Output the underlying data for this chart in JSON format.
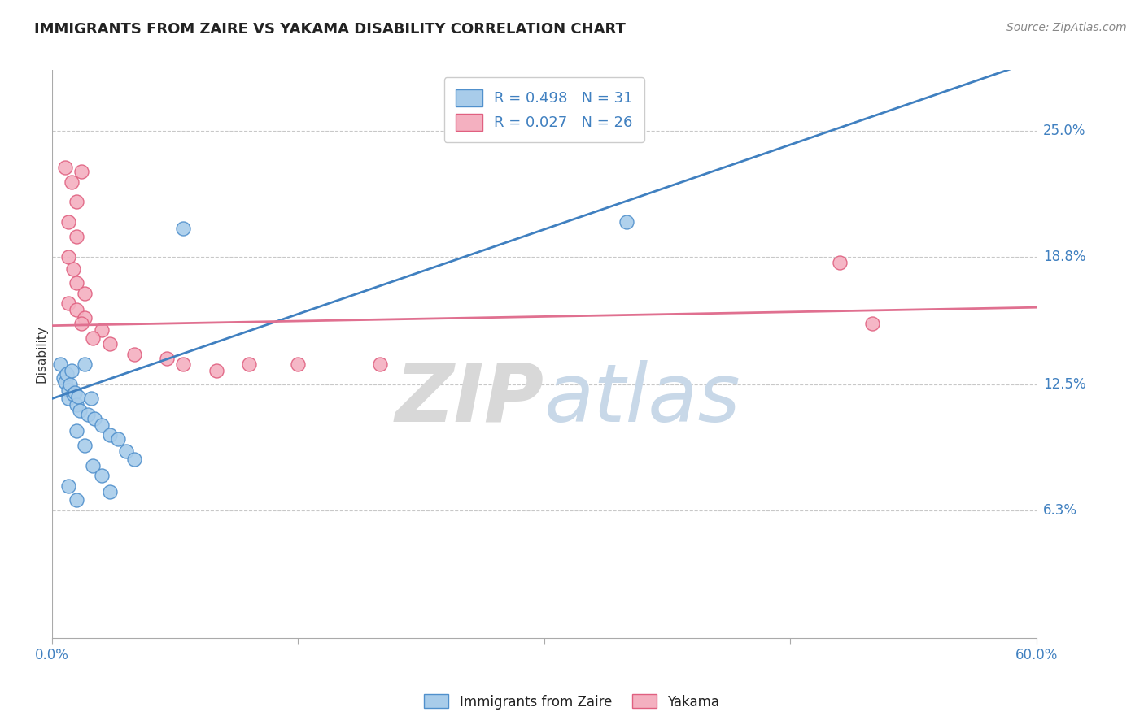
{
  "title": "IMMIGRANTS FROM ZAIRE VS YAKAMA DISABILITY CORRELATION CHART",
  "source": "Source: ZipAtlas.com",
  "ylabel": "Disability",
  "xlim": [
    0.0,
    60.0
  ],
  "ylim": [
    0.0,
    28.0
  ],
  "yticks": [
    6.3,
    12.5,
    18.8,
    25.0
  ],
  "ytick_labels": [
    "6.3%",
    "12.5%",
    "18.8%",
    "25.0%"
  ],
  "xticks": [
    0.0,
    15.0,
    30.0,
    45.0,
    60.0
  ],
  "blue_R": 0.498,
  "blue_N": 31,
  "pink_R": 0.027,
  "pink_N": 26,
  "blue_color": "#A8CCEA",
  "pink_color": "#F4B0C0",
  "blue_edge_color": "#5090CC",
  "pink_edge_color": "#E06080",
  "blue_line_color": "#4080C0",
  "pink_line_color": "#E07090",
  "legend_text_color": "#4080C0",
  "grid_color": "#C8C8C8",
  "watermark_color": "#D8D8D8",
  "blue_line_x": [
    0.0,
    60.0
  ],
  "blue_line_y": [
    11.8,
    28.5
  ],
  "pink_line_x": [
    0.0,
    60.0
  ],
  "pink_line_y": [
    15.4,
    16.3
  ],
  "blue_points": [
    [
      0.5,
      13.5
    ],
    [
      0.7,
      12.8
    ],
    [
      0.8,
      12.6
    ],
    [
      0.9,
      13.0
    ],
    [
      1.0,
      12.2
    ],
    [
      1.0,
      11.8
    ],
    [
      1.1,
      12.5
    ],
    [
      1.2,
      13.2
    ],
    [
      1.3,
      12.0
    ],
    [
      1.4,
      12.1
    ],
    [
      1.5,
      11.5
    ],
    [
      1.6,
      11.9
    ],
    [
      1.7,
      11.2
    ],
    [
      2.0,
      13.5
    ],
    [
      2.2,
      11.0
    ],
    [
      2.4,
      11.8
    ],
    [
      2.6,
      10.8
    ],
    [
      3.0,
      10.5
    ],
    [
      3.5,
      10.0
    ],
    [
      4.0,
      9.8
    ],
    [
      4.5,
      9.2
    ],
    [
      5.0,
      8.8
    ],
    [
      1.5,
      10.2
    ],
    [
      2.0,
      9.5
    ],
    [
      2.5,
      8.5
    ],
    [
      3.0,
      8.0
    ],
    [
      3.5,
      7.2
    ],
    [
      1.0,
      7.5
    ],
    [
      1.5,
      6.8
    ],
    [
      8.0,
      20.2
    ],
    [
      35.0,
      20.5
    ]
  ],
  "pink_points": [
    [
      0.8,
      23.2
    ],
    [
      1.2,
      22.5
    ],
    [
      1.5,
      21.5
    ],
    [
      1.8,
      23.0
    ],
    [
      1.0,
      20.5
    ],
    [
      1.5,
      19.8
    ],
    [
      1.0,
      18.8
    ],
    [
      1.3,
      18.2
    ],
    [
      1.5,
      17.5
    ],
    [
      2.0,
      17.0
    ],
    [
      1.0,
      16.5
    ],
    [
      1.5,
      16.2
    ],
    [
      2.0,
      15.8
    ],
    [
      1.8,
      15.5
    ],
    [
      3.0,
      15.2
    ],
    [
      2.5,
      14.8
    ],
    [
      3.5,
      14.5
    ],
    [
      5.0,
      14.0
    ],
    [
      7.0,
      13.8
    ],
    [
      8.0,
      13.5
    ],
    [
      10.0,
      13.2
    ],
    [
      12.0,
      13.5
    ],
    [
      48.0,
      18.5
    ],
    [
      50.0,
      15.5
    ],
    [
      15.0,
      13.5
    ],
    [
      20.0,
      13.5
    ]
  ]
}
